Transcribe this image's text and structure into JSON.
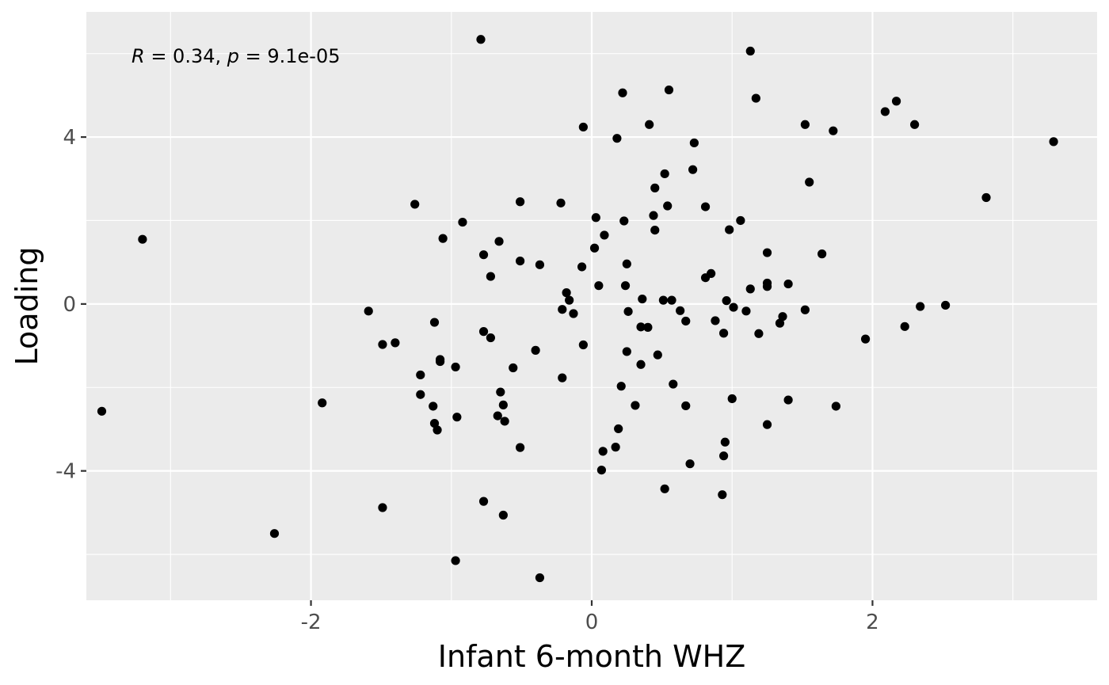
{
  "chart_data": {
    "type": "scatter",
    "xlabel": "Infant 6-month WHZ",
    "ylabel": "Loading",
    "annotation": "R = 0.34, p = 9.1e-05",
    "xlim": [
      -3.6,
      3.6
    ],
    "ylim": [
      -7.1,
      7.0
    ],
    "x_ticks": [
      -2,
      0,
      2
    ],
    "y_ticks": [
      -4,
      0,
      4
    ],
    "x_tick_labels": [
      "-2",
      "0",
      "2"
    ],
    "y_tick_labels": [
      "-4",
      "0",
      "4"
    ],
    "grid": true,
    "colors": {
      "panel": "#ebebeb",
      "grid": "#ffffff",
      "point": "#000000"
    },
    "points": [
      [
        -3.49,
        -2.57
      ],
      [
        -3.2,
        1.55
      ],
      [
        -2.26,
        -5.5
      ],
      [
        -1.92,
        -2.37
      ],
      [
        -1.59,
        -0.17
      ],
      [
        -1.49,
        -0.97
      ],
      [
        -1.49,
        -4.88
      ],
      [
        -1.4,
        -0.93
      ],
      [
        -1.26,
        2.39
      ],
      [
        -1.22,
        -1.7
      ],
      [
        -1.22,
        -2.17
      ],
      [
        -1.13,
        -2.45
      ],
      [
        -1.12,
        -2.86
      ],
      [
        -1.12,
        -0.44
      ],
      [
        -1.1,
        -3.02
      ],
      [
        -1.08,
        -1.33
      ],
      [
        -1.08,
        -1.38
      ],
      [
        -1.06,
        1.57
      ],
      [
        -0.97,
        -1.51
      ],
      [
        -0.97,
        -6.15
      ],
      [
        -0.96,
        -2.71
      ],
      [
        -0.92,
        1.96
      ],
      [
        -0.79,
        6.34
      ],
      [
        -0.77,
        -4.73
      ],
      [
        -0.77,
        -0.66
      ],
      [
        -0.77,
        1.18
      ],
      [
        -0.72,
        -0.81
      ],
      [
        -0.72,
        0.66
      ],
      [
        -0.67,
        -2.68
      ],
      [
        -0.66,
        1.5
      ],
      [
        -0.65,
        -2.11
      ],
      [
        -0.63,
        -2.42
      ],
      [
        -0.63,
        -5.06
      ],
      [
        -0.62,
        -2.81
      ],
      [
        -0.56,
        -1.53
      ],
      [
        -0.51,
        -3.44
      ],
      [
        -0.51,
        1.03
      ],
      [
        -0.51,
        2.45
      ],
      [
        -0.4,
        -1.11
      ],
      [
        -0.37,
        -6.56
      ],
      [
        -0.37,
        0.94
      ],
      [
        -0.22,
        2.42
      ],
      [
        -0.21,
        -0.13
      ],
      [
        -0.21,
        -1.77
      ],
      [
        -0.18,
        0.27
      ],
      [
        -0.16,
        0.09
      ],
      [
        -0.13,
        -0.23
      ],
      [
        -0.07,
        0.89
      ],
      [
        -0.06,
        -0.98
      ],
      [
        -0.06,
        4.24
      ],
      [
        0.02,
        1.34
      ],
      [
        0.03,
        2.07
      ],
      [
        0.05,
        0.44
      ],
      [
        0.07,
        -3.98
      ],
      [
        0.08,
        -3.53
      ],
      [
        0.09,
        1.65
      ],
      [
        0.17,
        -3.43
      ],
      [
        0.18,
        3.97
      ],
      [
        0.19,
        -2.99
      ],
      [
        0.21,
        -1.97
      ],
      [
        0.22,
        5.06
      ],
      [
        0.23,
        1.99
      ],
      [
        0.24,
        0.44
      ],
      [
        0.25,
        -1.14
      ],
      [
        0.25,
        0.96
      ],
      [
        0.26,
        -0.18
      ],
      [
        0.31,
        -2.43
      ],
      [
        0.35,
        -1.45
      ],
      [
        0.35,
        -0.55
      ],
      [
        0.36,
        0.12
      ],
      [
        0.4,
        -0.56
      ],
      [
        0.41,
        4.3
      ],
      [
        0.44,
        2.12
      ],
      [
        0.45,
        1.77
      ],
      [
        0.45,
        2.78
      ],
      [
        0.47,
        -1.22
      ],
      [
        0.51,
        0.09
      ],
      [
        0.52,
        -4.43
      ],
      [
        0.52,
        3.12
      ],
      [
        0.54,
        2.35
      ],
      [
        0.55,
        5.13
      ],
      [
        0.57,
        0.09
      ],
      [
        0.58,
        -1.92
      ],
      [
        0.63,
        -0.16
      ],
      [
        0.67,
        -0.41
      ],
      [
        0.67,
        -2.44
      ],
      [
        0.7,
        -3.83
      ],
      [
        0.72,
        3.22
      ],
      [
        0.73,
        3.86
      ],
      [
        0.81,
        0.63
      ],
      [
        0.81,
        2.33
      ],
      [
        0.85,
        0.73
      ],
      [
        0.88,
        -0.4
      ],
      [
        0.93,
        -4.57
      ],
      [
        0.94,
        -3.64
      ],
      [
        0.94,
        -0.7
      ],
      [
        0.95,
        -3.31
      ],
      [
        0.96,
        0.08
      ],
      [
        0.98,
        1.78
      ],
      [
        1.0,
        -2.27
      ],
      [
        1.01,
        -0.08
      ],
      [
        1.06,
        2.0
      ],
      [
        1.1,
        -0.17
      ],
      [
        1.13,
        0.36
      ],
      [
        1.13,
        6.06
      ],
      [
        1.17,
        4.93
      ],
      [
        1.19,
        -0.71
      ],
      [
        1.25,
        0.5
      ],
      [
        1.25,
        1.23
      ],
      [
        1.25,
        0.42
      ],
      [
        1.25,
        -2.89
      ],
      [
        1.34,
        -0.46
      ],
      [
        1.36,
        -0.3
      ],
      [
        1.4,
        0.48
      ],
      [
        1.4,
        -2.3
      ],
      [
        1.52,
        4.3
      ],
      [
        1.52,
        -0.14
      ],
      [
        1.55,
        2.92
      ],
      [
        1.64,
        1.2
      ],
      [
        1.72,
        4.15
      ],
      [
        1.74,
        -2.45
      ],
      [
        1.95,
        -0.84
      ],
      [
        2.09,
        4.61
      ],
      [
        2.17,
        4.86
      ],
      [
        2.23,
        -0.54
      ],
      [
        2.3,
        4.3
      ],
      [
        2.34,
        -0.06
      ],
      [
        2.52,
        -0.03
      ],
      [
        2.81,
        2.55
      ],
      [
        3.29,
        3.89
      ]
    ]
  }
}
